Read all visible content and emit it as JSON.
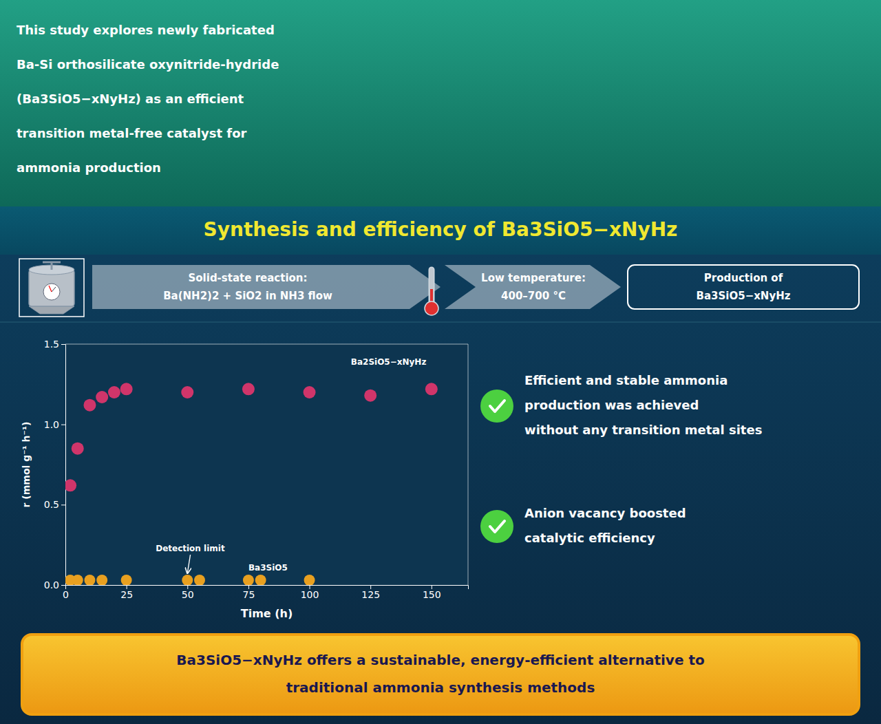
{
  "chart_data": {
    "type": "scatter",
    "title": "Synthesis and efficiency of Ba3SiO5−xNyHz",
    "x_label": "Time (h)",
    "y_label": "r (mmol g⁻¹ h⁻¹)",
    "xlim": [
      0,
      165
    ],
    "ylim": [
      0.0,
      1.5
    ],
    "xticks": [
      0,
      25,
      50,
      75,
      100,
      125,
      150
    ],
    "yticks": [
      {
        "value": 0.0,
        "label": "0.0"
      },
      0.5,
      {
        "value": 1.0,
        "label": "1.0"
      },
      1.5
    ],
    "grid": false,
    "series": [
      {
        "color": "#e8a020",
        "x": [
          2,
          5,
          10,
          15,
          25,
          50,
          55,
          75,
          80,
          100
        ],
        "values": [
          0.03,
          0.03,
          0.03,
          0.03,
          0.03,
          0.03,
          0.03,
          0.03,
          0.03,
          0.03
        ]
      },
      {
        "color": "#d0356a",
        "x": [
          2,
          5,
          10,
          15,
          20,
          25,
          50,
          75,
          100,
          125,
          150
        ],
        "values": [
          0.62,
          0.85,
          1.12,
          1.17,
          1.2,
          1.22,
          1.2,
          1.22,
          1.2,
          1.18,
          1.22
        ]
      }
    ],
    "annotations": [
      {
        "text": "Ba2SiO5−xNyHz",
        "x": 117,
        "y": 1.37
      },
      {
        "text": "Detection limit",
        "x": 37,
        "y": 0.21,
        "arrow_x": 50,
        "arrow_y": 0.03
      },
      {
        "text": "Ba3SiO5",
        "x": 75,
        "y": 0.09
      },
      {
        "lines": [
          "This study explores newly fabricated",
          "Ba-Si orthosilicate oxynitride-hydride",
          "(Ba3SiO5−xNyHz) as an efficient",
          "transition metal-free catalyst for",
          "ammonia production"
        ]
      },
      {
        "lines": [
          "Solid-state reaction:",
          "Ba(NH2)2 + SiO2 in NH3 flow"
        ]
      },
      {
        "lines": [
          "Low temperature:",
          "400–700 °C"
        ]
      },
      {
        "lines": [
          "Production of",
          "Ba3SiO5−xNyHz"
        ]
      },
      {
        "lines": [
          "Efficient and stable ammonia",
          "production was achieved",
          "without any transition metal sites"
        ]
      },
      {
        "lines": [
          "Anion vacancy boosted",
          "catalytic efficiency"
        ]
      },
      {
        "lines": [
          "Ba3SiO5−xNyHz offers a sustainable, energy-efficient alternative to",
          "traditional ammonia synthesis methods"
        ]
      }
    ]
  }
}
